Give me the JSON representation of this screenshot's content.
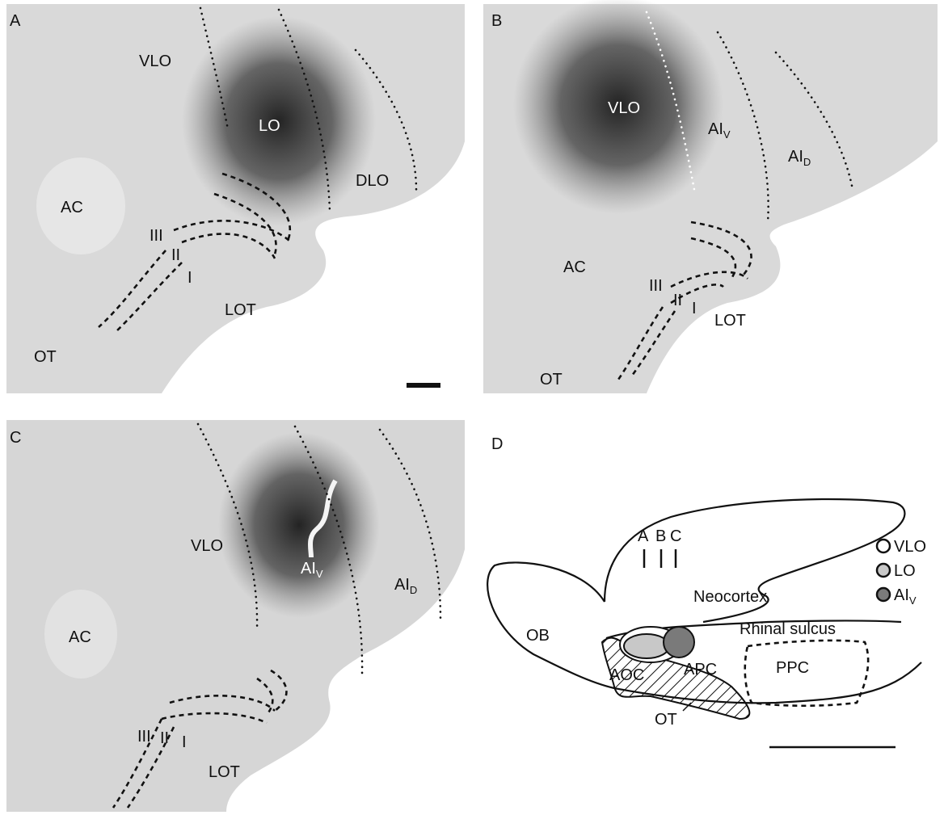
{
  "panels": [
    {
      "letter": "A",
      "labels": {
        "vlo": "VLO",
        "lo": "LO",
        "dlo": "DLO",
        "ac": "AC",
        "l3": "III",
        "l2": "II",
        "l1": "I",
        "lot": "LOT",
        "ot": "OT"
      }
    },
    {
      "letter": "B",
      "labels": {
        "vlo": "VLO",
        "aiv": {
          "main": "AI",
          "sub": "V"
        },
        "aid": {
          "main": "AI",
          "sub": "D"
        },
        "ac": "AC",
        "l3": "III",
        "l2": "II",
        "l1": "I",
        "lot": "LOT",
        "ot": "OT"
      }
    },
    {
      "letter": "C",
      "labels": {
        "vlo": "VLO",
        "aiv": {
          "main": "AI",
          "sub": "V"
        },
        "aid": {
          "main": "AI",
          "sub": "D"
        },
        "ac": "AC",
        "l3": "III",
        "l2": "II",
        "l1": "I",
        "lot": "LOT"
      }
    }
  ],
  "diagram": {
    "letter": "D",
    "sections": [
      "A",
      "B",
      "C"
    ],
    "regions": {
      "neocortex": "Neocortex",
      "ob": "OB",
      "rhinal": "Rhinal sulcus",
      "aoc": "AOC",
      "apc": "APC",
      "ppc": "PPC",
      "ot": "OT"
    },
    "legend": [
      {
        "main": "VLO",
        "color": "#ffffff"
      },
      {
        "main": "LO",
        "color": "#c8c8c8"
      },
      {
        "main": "AI",
        "sub": "V",
        "color": "#7a7a7a"
      }
    ]
  }
}
